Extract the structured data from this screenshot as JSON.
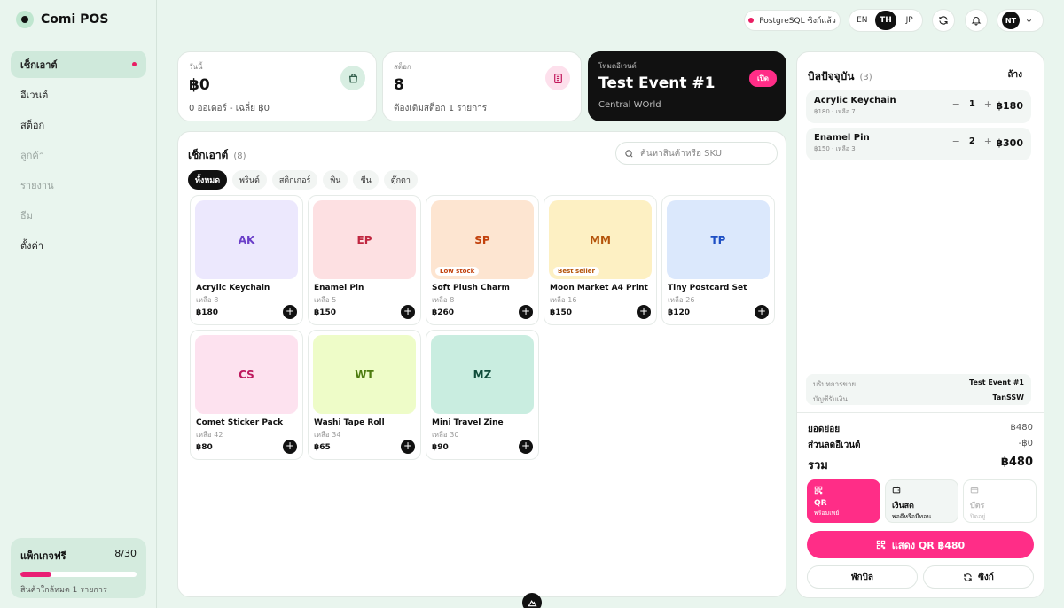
{
  "app": {
    "name": "Comi POS"
  },
  "sidebar": {
    "items": [
      {
        "label": "เช็กเอาต์"
      },
      {
        "label": "อีเวนต์"
      },
      {
        "label": "สต็อก"
      },
      {
        "label": "ลูกค้า"
      },
      {
        "label": "รายงาน"
      },
      {
        "label": "ธีม"
      },
      {
        "label": "ตั้งค่า"
      }
    ],
    "package": {
      "title": "แพ็กเกจฟรี",
      "count": "8/30",
      "usage_fraction": 0.27,
      "note": "สินค้าใกล้หมด 1 รายการ"
    }
  },
  "topbar": {
    "db_status": "PostgreSQL ซิงก์แล้ว",
    "languages": [
      "EN",
      "TH",
      "JP"
    ],
    "active_language": "TH",
    "user_initials": "NT"
  },
  "stats": {
    "today": {
      "label": "วันนี้",
      "value": "฿0",
      "sub": "0 ออเดอร์ - เฉลี่ย ฿0"
    },
    "stock": {
      "label": "สต็อก",
      "value": "8",
      "sub": "ต้องเติมสต็อก 1 รายการ"
    },
    "event": {
      "label": "โหมดอีเวนต์",
      "title": "Test Event #1",
      "location": "Central WOrld",
      "badge": "เปิด"
    }
  },
  "checkout": {
    "title": "เช็กเอาต์",
    "count": "(8)",
    "search_placeholder": "ค้นหาสินค้าหรือ SKU",
    "categories": [
      "ทั้งหมด",
      "พรินต์",
      "สติกเกอร์",
      "พิน",
      "ชีน",
      "ตุ๊กตา"
    ],
    "products": [
      {
        "code": "AK",
        "name": "Acrylic Keychain",
        "stock": "เหลือ 8",
        "price": "฿180",
        "bg": "#ece8fd",
        "fg": "#6b3fc9",
        "tag": ""
      },
      {
        "code": "EP",
        "name": "Enamel Pin",
        "stock": "เหลือ 5",
        "price": "฿150",
        "bg": "#fde0e2",
        "fg": "#c0263f",
        "tag": ""
      },
      {
        "code": "SP",
        "name": "Soft Plush Charm",
        "stock": "เหลือ 8",
        "price": "฿260",
        "bg": "#fde5d1",
        "fg": "#c2410c",
        "tag": "Low stock"
      },
      {
        "code": "MM",
        "name": "Moon Market A4 Print",
        "stock": "เหลือ 16",
        "price": "฿150",
        "bg": "#fdf0c3",
        "fg": "#b45309",
        "tag": "Best seller"
      },
      {
        "code": "TP",
        "name": "Tiny Postcard Set",
        "stock": "เหลือ 26",
        "price": "฿120",
        "bg": "#dbe8fc",
        "fg": "#1d4fc4",
        "tag": ""
      },
      {
        "code": "CS",
        "name": "Comet Sticker Pack",
        "stock": "เหลือ 42",
        "price": "฿80",
        "bg": "#fde2ef",
        "fg": "#be185d",
        "tag": ""
      },
      {
        "code": "WT",
        "name": "Washi Tape Roll",
        "stock": "เหลือ 34",
        "price": "฿65",
        "bg": "#eefcc8",
        "fg": "#4d7c0f",
        "tag": ""
      },
      {
        "code": "MZ",
        "name": "Mini Travel Zine",
        "stock": "เหลือ 30",
        "price": "฿90",
        "bg": "#c9ede0",
        "fg": "#0f4c3a",
        "tag": ""
      }
    ]
  },
  "bill": {
    "title": "บิลปัจจุบัน",
    "count": "(3)",
    "clear": "ล้าง",
    "lines": [
      {
        "name": "Acrylic Keychain",
        "sub": "฿180 · เหลือ 7",
        "qty": "1",
        "total": "฿180"
      },
      {
        "name": "Enamel Pin",
        "sub": "฿150 · เหลือ 3",
        "qty": "2",
        "total": "฿300"
      }
    ],
    "meta": {
      "sales_channel_label": "บริบทการขาย",
      "sales_channel": "Test Event #1",
      "account_label": "บัญชีรับเงิน",
      "account": "TanSSW"
    },
    "subtotal_label": "ยอดย่อย",
    "subtotal": "฿480",
    "discount_label": "ส่วนลดอีเวนต์",
    "discount": "-฿0",
    "total_label": "รวม",
    "total": "฿480",
    "payments": [
      {
        "label": "QR",
        "sub": "พร้อมเพย์"
      },
      {
        "label": "เงินสด",
        "sub": "พอดีหรือมีทอน"
      },
      {
        "label": "บัตร",
        "sub": "ปิดอยู่"
      }
    ],
    "qr_button": "แสดง QR ฿480",
    "hold_button": "พักบิล",
    "sync_button": "ซิงก์"
  }
}
